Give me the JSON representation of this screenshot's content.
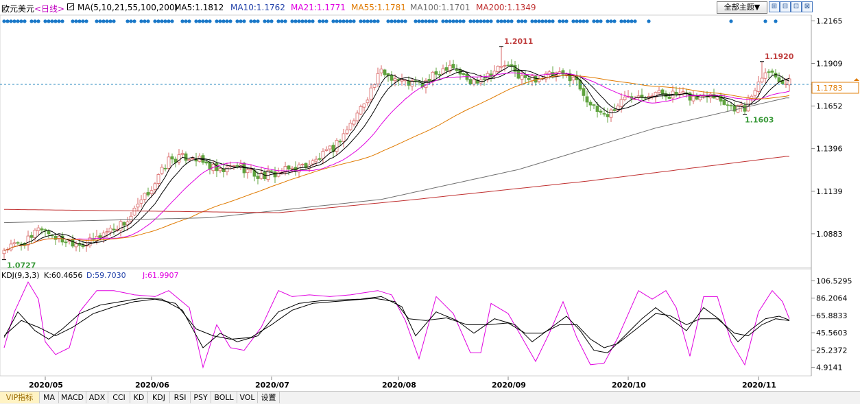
{
  "header": {
    "symbol": "欧元美元",
    "period": "<日线>",
    "ma_params": "MA(5,10,21,55,100,200)",
    "ma_values": [
      {
        "label": "MA5:1.1812",
        "color": "#000000"
      },
      {
        "label": "MA10:1.1762",
        "color": "#1f3fa8"
      },
      {
        "label": "MA21:1.1771",
        "color": "#e000e0"
      },
      {
        "label": "MA55:1.1781",
        "color": "#e07a00"
      },
      {
        "label": "MA100:1.1701",
        "color": "#707070"
      },
      {
        "label": "MA200:1.1349",
        "color": "#c03030"
      }
    ],
    "theme_button": "全部主题▼",
    "tools": [
      "⊞",
      "⊟",
      "⊡",
      "⊠"
    ]
  },
  "colors": {
    "up": "#d96666",
    "down": "#5fa33e",
    "ma5": "#000000",
    "ma10": "#000000",
    "ma21": "#e000e0",
    "ma55": "#e07a00",
    "ma100": "#707070",
    "ma200": "#c03030",
    "current_price_line": "#2a8abf",
    "current_price_box": "#e07a00",
    "dots": "#1a78c8",
    "kdj_k": "#000000",
    "kdj_d": "#000000",
    "kdj_j": "#e000e0"
  },
  "chart_data": [
    {
      "type": "candlestick",
      "title": "欧元美元 日线",
      "ylim": [
        1.068,
        1.22
      ],
      "y_ticks": [
        "1.2165",
        "1.1909",
        "1.1652",
        "1.1396",
        "1.1139",
        "1.0883"
      ],
      "y_tick_values": [
        1.2165,
        1.1909,
        1.1652,
        1.1396,
        1.1139,
        1.0883
      ],
      "current_price": "1.1783",
      "current_price_value": 1.1783,
      "annotations": [
        {
          "text": "1.2011",
          "value": 1.2011,
          "index": 145,
          "kind": "high"
        },
        {
          "text": "1.1920",
          "value": 1.192,
          "index": 221,
          "kind": "high"
        },
        {
          "text": "1.1603",
          "value": 1.1603,
          "index": 216,
          "kind": "low"
        },
        {
          "text": "1.0727",
          "value": 1.0727,
          "index": 0,
          "kind": "low"
        }
      ],
      "anchors": [
        [
          0,
          1.079
        ],
        [
          8,
          1.085
        ],
        [
          10,
          1.093
        ],
        [
          16,
          1.085
        ],
        [
          24,
          1.082
        ],
        [
          30,
          1.09
        ],
        [
          36,
          1.096
        ],
        [
          44,
          1.119
        ],
        [
          48,
          1.133
        ],
        [
          55,
          1.135
        ],
        [
          63,
          1.125
        ],
        [
          68,
          1.13
        ],
        [
          74,
          1.123
        ],
        [
          80,
          1.125
        ],
        [
          90,
          1.131
        ],
        [
          96,
          1.14
        ],
        [
          102,
          1.157
        ],
        [
          110,
          1.186
        ],
        [
          116,
          1.18
        ],
        [
          122,
          1.178
        ],
        [
          130,
          1.191
        ],
        [
          136,
          1.179
        ],
        [
          146,
          1.19
        ],
        [
          152,
          1.181
        ],
        [
          160,
          1.184
        ],
        [
          166,
          1.183
        ],
        [
          172,
          1.163
        ],
        [
          176,
          1.16
        ],
        [
          182,
          1.172
        ],
        [
          190,
          1.173
        ],
        [
          196,
          1.172
        ],
        [
          202,
          1.17
        ],
        [
          206,
          1.174
        ],
        [
          212,
          1.165
        ],
        [
          216,
          1.164
        ],
        [
          222,
          1.188
        ],
        [
          228,
          1.179
        ]
      ],
      "ma_lines": {
        "ma100": [
          [
            0,
            1.095
          ],
          [
            60,
            1.098
          ],
          [
            110,
            1.109
          ],
          [
            150,
            1.127
          ],
          [
            190,
            1.152
          ],
          [
            228,
            1.1701
          ]
        ],
        "ma200": [
          [
            0,
            1.103
          ],
          [
            80,
            1.101
          ],
          [
            120,
            1.109
          ],
          [
            170,
            1.12
          ],
          [
            228,
            1.1349
          ]
        ]
      },
      "dot_indices": [
        0,
        1,
        2,
        3,
        4,
        5,
        6,
        8,
        9,
        10,
        12,
        13,
        14,
        15,
        16,
        17,
        20,
        21,
        22,
        23,
        24,
        27,
        28,
        29,
        30,
        31,
        32,
        36,
        37,
        38,
        40,
        41,
        42,
        44,
        45,
        46,
        47,
        48,
        49,
        52,
        53,
        54,
        56,
        57,
        58,
        59,
        60,
        62,
        63,
        64,
        65,
        66,
        68,
        69,
        70,
        72,
        73,
        74,
        76,
        77,
        78,
        80,
        81,
        82,
        84,
        85,
        86,
        87,
        88,
        89,
        90,
        92,
        93,
        94,
        96,
        97,
        98,
        99,
        100,
        101,
        102,
        104,
        105,
        106,
        107,
        108,
        109,
        112,
        113,
        114,
        115,
        116,
        117,
        120,
        121,
        122,
        123,
        124,
        125,
        126,
        128,
        129,
        130,
        131,
        132,
        133,
        134,
        136,
        137,
        138,
        139,
        140,
        141,
        142,
        144,
        145,
        146,
        147,
        148,
        150,
        151,
        152,
        154,
        155,
        156,
        157,
        158,
        159,
        160,
        162,
        163,
        164,
        166,
        167,
        168,
        169,
        170,
        172,
        173,
        174,
        176,
        177,
        178,
        180,
        181,
        182,
        183,
        184,
        188,
        212,
        222,
        225
      ]
    },
    {
      "type": "line",
      "title": "KDJ(9,3,3)",
      "label": "KDJ(9,3,3)",
      "legend": [
        {
          "label": "K:60.4656",
          "color": "#000000"
        },
        {
          "label": "D:59.7030",
          "color": "#1f3fa8"
        },
        {
          "label": "J:61.9907",
          "color": "#e000e0"
        }
      ],
      "ylim": [
        -5,
        110
      ],
      "y_ticks": [
        "106.5295",
        "86.2064",
        "65.8833",
        "45.5603",
        "25.2372",
        "4.9141"
      ],
      "y_tick_values": [
        106.5295,
        86.2064,
        65.8833,
        45.5603,
        25.2372,
        4.9141
      ],
      "k_anchors": [
        [
          0,
          40
        ],
        [
          4,
          70
        ],
        [
          9,
          48
        ],
        [
          13,
          38
        ],
        [
          17,
          50
        ],
        [
          22,
          68
        ],
        [
          28,
          78
        ],
        [
          34,
          82
        ],
        [
          40,
          86
        ],
        [
          46,
          85
        ],
        [
          52,
          72
        ],
        [
          58,
          28
        ],
        [
          63,
          45
        ],
        [
          68,
          35
        ],
        [
          74,
          42
        ],
        [
          80,
          70
        ],
        [
          86,
          80
        ],
        [
          92,
          83
        ],
        [
          98,
          84
        ],
        [
          104,
          85
        ],
        [
          110,
          88
        ],
        [
          116,
          76
        ],
        [
          120,
          42
        ],
        [
          126,
          70
        ],
        [
          132,
          60
        ],
        [
          137,
          45
        ],
        [
          143,
          62
        ],
        [
          149,
          55
        ],
        [
          154,
          35
        ],
        [
          159,
          50
        ],
        [
          164,
          65
        ],
        [
          168,
          48
        ],
        [
          172,
          25
        ],
        [
          176,
          22
        ],
        [
          180,
          38
        ],
        [
          186,
          62
        ],
        [
          190,
          75
        ],
        [
          195,
          60
        ],
        [
          199,
          48
        ],
        [
          204,
          75
        ],
        [
          209,
          60
        ],
        [
          214,
          35
        ],
        [
          218,
          50
        ],
        [
          222,
          62
        ],
        [
          226,
          65
        ],
        [
          229,
          60.4656
        ]
      ],
      "d_anchors": [
        [
          0,
          42
        ],
        [
          5,
          60
        ],
        [
          10,
          52
        ],
        [
          15,
          42
        ],
        [
          20,
          52
        ],
        [
          26,
          68
        ],
        [
          32,
          76
        ],
        [
          38,
          82
        ],
        [
          44,
          85
        ],
        [
          50,
          80
        ],
        [
          56,
          50
        ],
        [
          61,
          42
        ],
        [
          66,
          38
        ],
        [
          72,
          40
        ],
        [
          78,
          55
        ],
        [
          84,
          72
        ],
        [
          90,
          80
        ],
        [
          96,
          82
        ],
        [
          102,
          84
        ],
        [
          108,
          86
        ],
        [
          114,
          82
        ],
        [
          118,
          62
        ],
        [
          123,
          60
        ],
        [
          129,
          63
        ],
        [
          135,
          55
        ],
        [
          141,
          55
        ],
        [
          147,
          57
        ],
        [
          152,
          45
        ],
        [
          157,
          45
        ],
        [
          162,
          55
        ],
        [
          167,
          55
        ],
        [
          171,
          38
        ],
        [
          175,
          28
        ],
        [
          179,
          33
        ],
        [
          185,
          52
        ],
        [
          190,
          68
        ],
        [
          194,
          66
        ],
        [
          199,
          55
        ],
        [
          203,
          62
        ],
        [
          208,
          62
        ],
        [
          213,
          45
        ],
        [
          217,
          42
        ],
        [
          221,
          55
        ],
        [
          225,
          62
        ],
        [
          229,
          59.703
        ]
      ],
      "j_anchors": [
        [
          0,
          28
        ],
        [
          3,
          70
        ],
        [
          7,
          105
        ],
        [
          10,
          85
        ],
        [
          12,
          35
        ],
        [
          15,
          20
        ],
        [
          19,
          28
        ],
        [
          22,
          70
        ],
        [
          27,
          95
        ],
        [
          32,
          95
        ],
        [
          38,
          90
        ],
        [
          44,
          88
        ],
        [
          48,
          95
        ],
        [
          54,
          75
        ],
        [
          58,
          5
        ],
        [
          62,
          55
        ],
        [
          66,
          28
        ],
        [
          70,
          25
        ],
        [
          75,
          52
        ],
        [
          80,
          95
        ],
        [
          84,
          88
        ],
        [
          89,
          90
        ],
        [
          95,
          88
        ],
        [
          101,
          90
        ],
        [
          109,
          95
        ],
        [
          113,
          90
        ],
        [
          117,
          60
        ],
        [
          121,
          15
        ],
        [
          126,
          88
        ],
        [
          131,
          68
        ],
        [
          136,
          22
        ],
        [
          139,
          22
        ],
        [
          142,
          80
        ],
        [
          147,
          68
        ],
        [
          151,
          40
        ],
        [
          155,
          12
        ],
        [
          159,
          45
        ],
        [
          163,
          82
        ],
        [
          167,
          40
        ],
        [
          171,
          8
        ],
        [
          175,
          10
        ],
        [
          179,
          40
        ],
        [
          185,
          95
        ],
        [
          189,
          85
        ],
        [
          193,
          95
        ],
        [
          196,
          75
        ],
        [
          200,
          18
        ],
        [
          204,
          88
        ],
        [
          208,
          88
        ],
        [
          212,
          35
        ],
        [
          216,
          8
        ],
        [
          220,
          70
        ],
        [
          224,
          95
        ],
        [
          227,
          82
        ],
        [
          229,
          61.9907
        ]
      ]
    }
  ],
  "x_axis": {
    "labels": [
      "2020/05",
      "2020/06",
      "2020/07",
      "2020/08",
      "2020/09",
      "2020/10",
      "2020/11"
    ],
    "label_indices": [
      12,
      43,
      78,
      115,
      147,
      182,
      220
    ]
  },
  "bottom_tabs": [
    "VIP指标",
    "MA",
    "MACD",
    "ADX",
    "CCI",
    "KD",
    "KDJ",
    "RSI",
    "PSY",
    "BOLL",
    "VOL",
    "设置"
  ]
}
